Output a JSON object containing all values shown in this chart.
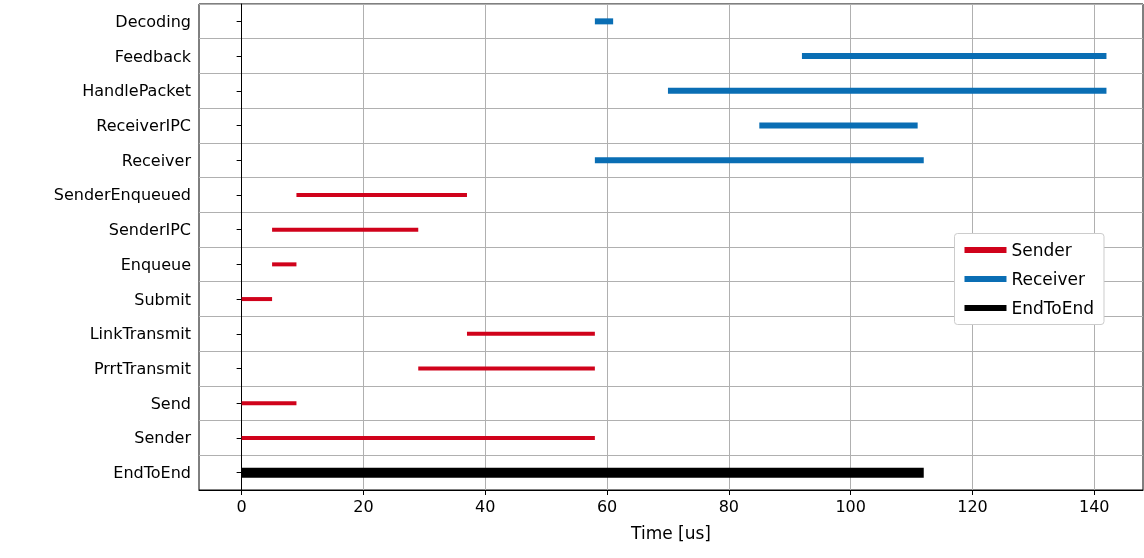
{
  "chart_data": {
    "type": "bar",
    "orientation": "horizontal",
    "xlabel": "Time [us]",
    "categories": [
      "Decoding",
      "Feedback",
      "HandlePacket",
      "ReceiverIPC",
      "Receiver",
      "SenderEnqueued",
      "SenderIPC",
      "Enqueue",
      "Submit",
      "LinkTransmit",
      "PrrtTransmit",
      "Send",
      "Sender",
      "EndToEnd"
    ],
    "series": [
      {
        "name": "Sender",
        "color": "#d0021b",
        "base": [
          null,
          null,
          null,
          null,
          null,
          9,
          5,
          5,
          0,
          37,
          29,
          0,
          0,
          null
        ],
        "values": [
          null,
          null,
          null,
          null,
          null,
          28,
          24,
          4,
          5,
          21,
          29,
          9,
          58,
          null
        ]
      },
      {
        "name": "Receiver",
        "color": "#0a6eb4",
        "base": [
          58,
          92,
          70,
          85,
          58,
          null,
          null,
          null,
          null,
          null,
          null,
          null,
          null,
          null
        ],
        "values": [
          3,
          50,
          72,
          26,
          54,
          null,
          null,
          null,
          null,
          null,
          null,
          null,
          null,
          null
        ]
      },
      {
        "name": "EndToEnd",
        "color": "#000000",
        "base": [
          null,
          null,
          null,
          null,
          null,
          null,
          null,
          null,
          null,
          null,
          null,
          null,
          null,
          0
        ],
        "values": [
          null,
          null,
          null,
          null,
          null,
          null,
          null,
          null,
          null,
          null,
          null,
          null,
          null,
          112
        ]
      }
    ],
    "xlim": [
      -7,
      148
    ],
    "xticks": [
      0,
      20,
      40,
      60,
      80,
      100,
      120,
      140
    ],
    "grid": true,
    "legend": "right"
  }
}
